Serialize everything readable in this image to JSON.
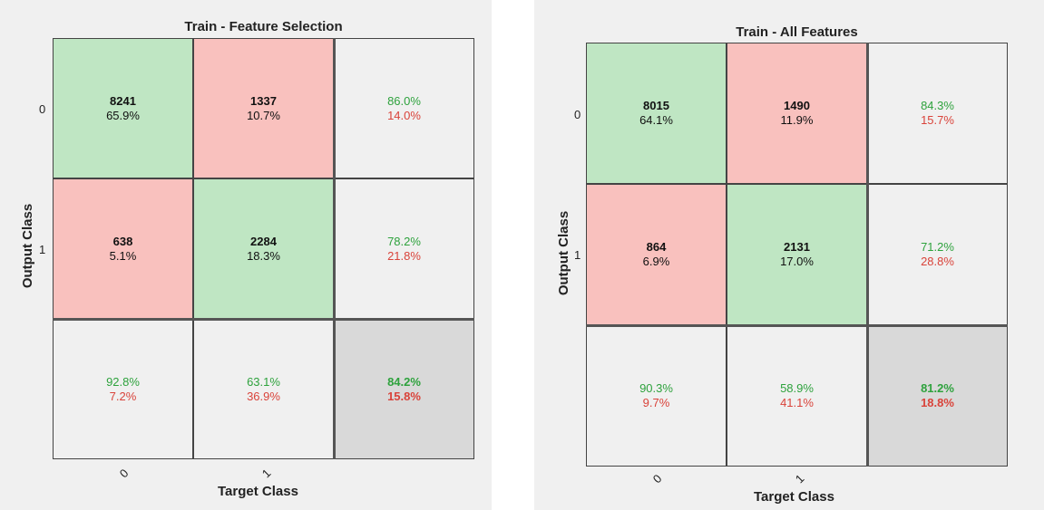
{
  "charts": [
    {
      "title": "Train - Feature Selection",
      "xlabel": "Target Class",
      "ylabel": "Output Class",
      "row_labels": [
        "0",
        "1"
      ],
      "col_labels": [
        "0",
        "1"
      ],
      "cells": [
        [
          {
            "count": "8241",
            "pct": "65.9%"
          },
          {
            "count": "1337",
            "pct": "10.7%"
          },
          {
            "good": "86.0%",
            "bad": "14.0%"
          }
        ],
        [
          {
            "count": "638",
            "pct": "5.1%"
          },
          {
            "count": "2284",
            "pct": "18.3%"
          },
          {
            "good": "78.2%",
            "bad": "21.8%"
          }
        ],
        [
          {
            "good": "92.8%",
            "bad": "7.2%"
          },
          {
            "good": "63.1%",
            "bad": "36.9%"
          },
          {
            "good": "84.2%",
            "bad": "15.8%"
          }
        ]
      ]
    },
    {
      "title": "Train - All Features",
      "xlabel": "Target Class",
      "ylabel": "Output Class",
      "row_labels": [
        "0",
        "1"
      ],
      "col_labels": [
        "0",
        "1"
      ],
      "cells": [
        [
          {
            "count": "8015",
            "pct": "64.1%"
          },
          {
            "count": "1490",
            "pct": "11.9%"
          },
          {
            "good": "84.3%",
            "bad": "15.7%"
          }
        ],
        [
          {
            "count": "864",
            "pct": "6.9%"
          },
          {
            "count": "2131",
            "pct": "17.0%"
          },
          {
            "good": "71.2%",
            "bad": "28.8%"
          }
        ],
        [
          {
            "good": "90.3%",
            "bad": "9.7%"
          },
          {
            "good": "58.9%",
            "bad": "41.1%"
          },
          {
            "good": "81.2%",
            "bad": "18.8%"
          }
        ]
      ]
    }
  ],
  "chart_data": [
    {
      "type": "heatmap",
      "title": "Train - Feature Selection",
      "xlabel": "Target Class",
      "ylabel": "Output Class",
      "x": [
        "0",
        "1"
      ],
      "y": [
        "0",
        "1"
      ],
      "values": [
        [
          8241,
          1337
        ],
        [
          638,
          2284
        ]
      ],
      "percentages": [
        [
          65.9,
          10.7
        ],
        [
          5.1,
          18.3
        ]
      ],
      "row_precision": [
        86.0,
        78.2
      ],
      "col_recall": [
        92.8,
        63.1
      ],
      "overall_accuracy": 84.2,
      "overall_error": 15.8
    },
    {
      "type": "heatmap",
      "title": "Train - All Features",
      "xlabel": "Target Class",
      "ylabel": "Output Class",
      "x": [
        "0",
        "1"
      ],
      "y": [
        "0",
        "1"
      ],
      "values": [
        [
          8015,
          1490
        ],
        [
          864,
          2131
        ]
      ],
      "percentages": [
        [
          64.1,
          11.9
        ],
        [
          6.9,
          17.0
        ]
      ],
      "row_precision": [
        84.3,
        71.2
      ],
      "col_recall": [
        90.3,
        58.9
      ],
      "overall_accuracy": 81.2,
      "overall_error": 18.8
    }
  ],
  "colors": {
    "correct_cell": "#bfe6c3",
    "wrong_cell": "#f9c1be",
    "summary_cell": "#f0f0f0",
    "total_cell": "#d9d9d9",
    "good_text": "#2ea23d",
    "bad_text": "#d9433a"
  }
}
